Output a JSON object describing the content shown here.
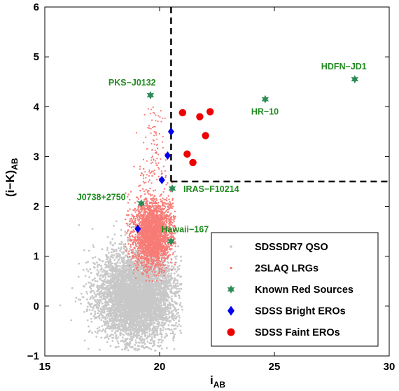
{
  "chart_data": {
    "type": "scatter",
    "xlabel": "i",
    "xlabel_sub": "AB",
    "ylabel": "(i−K)",
    "ylabel_sub": "AB",
    "xlim": [
      15,
      30
    ],
    "ylim": [
      -1,
      6
    ],
    "xticks": [
      "15",
      "20",
      "25",
      "30"
    ],
    "yticks": [
      "−1",
      "0",
      "1",
      "2",
      "3",
      "4",
      "5",
      "6"
    ],
    "grid": false,
    "legend_position": "bottom-right",
    "colors": {
      "qso": "#c8c8c8",
      "lrg": "#f77b76",
      "known": "#2e8b57",
      "bright": "#0000ee",
      "faint": "#ee0000",
      "annotation": "#1f8a1f"
    },
    "selection_box": {
      "x_min": 20.5,
      "y_min": 2.5
    },
    "series": [
      {
        "name": "SDSSDR7 QSO",
        "kind": "cloud",
        "marker": "dot",
        "center": [
          19.0,
          0.2
        ],
        "spread": [
          0.85,
          0.45
        ],
        "range_x": [
          15.5,
          21.0
        ],
        "range_y": [
          -0.9,
          2.6
        ]
      },
      {
        "name": "2SLAQ LRGs",
        "kind": "cloud",
        "marker": "dot",
        "center": [
          19.7,
          1.45
        ],
        "spread": [
          0.45,
          0.35
        ],
        "range_x": [
          18.5,
          20.7
        ],
        "range_y": [
          0.5,
          4.0
        ]
      },
      {
        "name": "Known Red Sources",
        "marker": "hexagram",
        "points": [
          {
            "x": 19.6,
            "y": 4.23,
            "label": "PKS−J0132"
          },
          {
            "x": 24.6,
            "y": 4.15,
            "label": "HR−10"
          },
          {
            "x": 28.5,
            "y": 4.55,
            "label": "HDFN−JD1"
          },
          {
            "x": 20.55,
            "y": 2.36,
            "label": "IRAS−F10214"
          },
          {
            "x": 19.2,
            "y": 2.06,
            "label": "J0738+2750"
          },
          {
            "x": 20.5,
            "y": 1.3,
            "label": "Hawaii−167"
          }
        ]
      },
      {
        "name": "SDSS Bright EROs",
        "marker": "diamond",
        "points": [
          {
            "x": 20.5,
            "y": 3.5
          },
          {
            "x": 20.35,
            "y": 3.02
          },
          {
            "x": 20.1,
            "y": 2.53
          },
          {
            "x": 19.05,
            "y": 1.55
          }
        ]
      },
      {
        "name": "SDSS Faint EROs",
        "marker": "circle",
        "points": [
          {
            "x": 21.0,
            "y": 3.88
          },
          {
            "x": 21.75,
            "y": 3.8
          },
          {
            "x": 22.2,
            "y": 3.9
          },
          {
            "x": 22.0,
            "y": 3.42
          },
          {
            "x": 21.2,
            "y": 3.05
          },
          {
            "x": 21.45,
            "y": 2.88
          }
        ]
      }
    ]
  }
}
